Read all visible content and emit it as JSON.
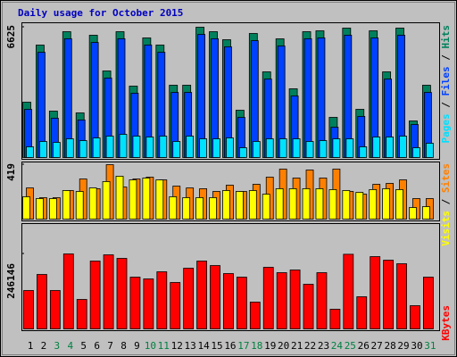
{
  "chart_data": {
    "type": "bar",
    "title": "Daily usage for October 2015",
    "title_color": "#0000c0",
    "categories": [
      "1",
      "2",
      "3",
      "4",
      "5",
      "6",
      "7",
      "8",
      "9",
      "10",
      "11",
      "12",
      "13",
      "14",
      "15",
      "16",
      "17",
      "18",
      "19",
      "20",
      "21",
      "22",
      "23",
      "24",
      "25",
      "26",
      "27",
      "28",
      "29",
      "30",
      "31"
    ],
    "category_colors": [
      "#000000",
      "#000000",
      "#008040",
      "#008040",
      "#000000",
      "#000000",
      "#000000",
      "#000000",
      "#000000",
      "#008040",
      "#008040",
      "#000000",
      "#000000",
      "#000000",
      "#000000",
      "#000000",
      "#008040",
      "#008040",
      "#000000",
      "#000000",
      "#000000",
      "#000000",
      "#000000",
      "#008040",
      "#008040",
      "#000000",
      "#000000",
      "#000000",
      "#000000",
      "#000000",
      "#008040"
    ],
    "legend_separator": "/",
    "panels": [
      {
        "ylim": [
          0,
          6625
        ],
        "yticks": [
          6625
        ],
        "series": [
          {
            "name": "Hits",
            "color": "#00805c",
            "values": [
              2813,
              5717,
              2360,
              6398,
              2269,
              6217,
              4402,
              6398,
              3630,
              6081,
              5717,
              3676,
              3676,
              6625,
              6398,
              5990,
              2405,
              6307,
              4356,
              6035,
              3494,
              6398,
              6443,
              2042,
              6580,
              2450,
              6443,
              4356,
              6580,
              1860,
              3676
            ]
          },
          {
            "name": "Files",
            "color": "#0040ff",
            "values": [
              2450,
              5350,
              2000,
              6040,
              1910,
              5850,
              4040,
              6040,
              3270,
              5720,
              5350,
              3310,
              3310,
              6260,
              6040,
              5630,
              2040,
              5940,
              3990,
              5670,
              3130,
              6040,
              6080,
              1540,
              6220,
              2090,
              6080,
              3990,
              6220,
              1680,
              3310
            ]
          },
          {
            "name": "Pages",
            "color": "#00e0ff",
            "values": [
              545,
              817,
              771,
              953,
              862,
              998,
              1089,
              1180,
              1089,
              1044,
              1089,
              817,
              1089,
              953,
              953,
              998,
              499,
              817,
              953,
              953,
              953,
              817,
              862,
              953,
              953,
              545,
              1044,
              1044,
              1089,
              499,
              726
            ]
          }
        ]
      },
      {
        "ylim": [
          0,
          419
        ],
        "yticks": [
          419
        ],
        "series": [
          {
            "name": "Sites",
            "color": "#ff8000",
            "values": [
              240,
              165,
              165,
              220,
              309,
              234,
              419,
              247,
              309,
              323,
              302,
              254,
              240,
              234,
              213,
              261,
              213,
              268,
              323,
              385,
              316,
              378,
              316,
              385,
              213,
              192,
              268,
              275,
              302,
              158,
              158
            ]
          },
          {
            "name": "Visits",
            "color": "#ffff00",
            "values": [
              172,
              158,
              158,
              220,
              213,
              240,
              289,
              330,
              302,
              316,
              302,
              172,
              165,
              165,
              165,
              220,
              213,
              220,
              192,
              234,
              234,
              234,
              234,
              227,
              220,
              206,
              227,
              234,
              227,
              89,
              96
            ]
          }
        ]
      },
      {
        "ylim": [
          0,
          246146
        ],
        "yticks": [
          246146
        ],
        "series": [
          {
            "name": "KBytes",
            "color": "#ff0000",
            "values": [
              126000,
              178700,
              126000,
              246146,
              96700,
              222700,
              243200,
              231500,
              169900,
              164100,
              187500,
              152400,
              199200,
              222700,
              208000,
              181700,
              169900,
              87900,
              202200,
              184600,
              193400,
              146500,
              184600,
              64500,
              245000,
              105500,
              237300,
              225600,
              213900,
              76200,
              169900
            ]
          }
        ]
      }
    ]
  }
}
